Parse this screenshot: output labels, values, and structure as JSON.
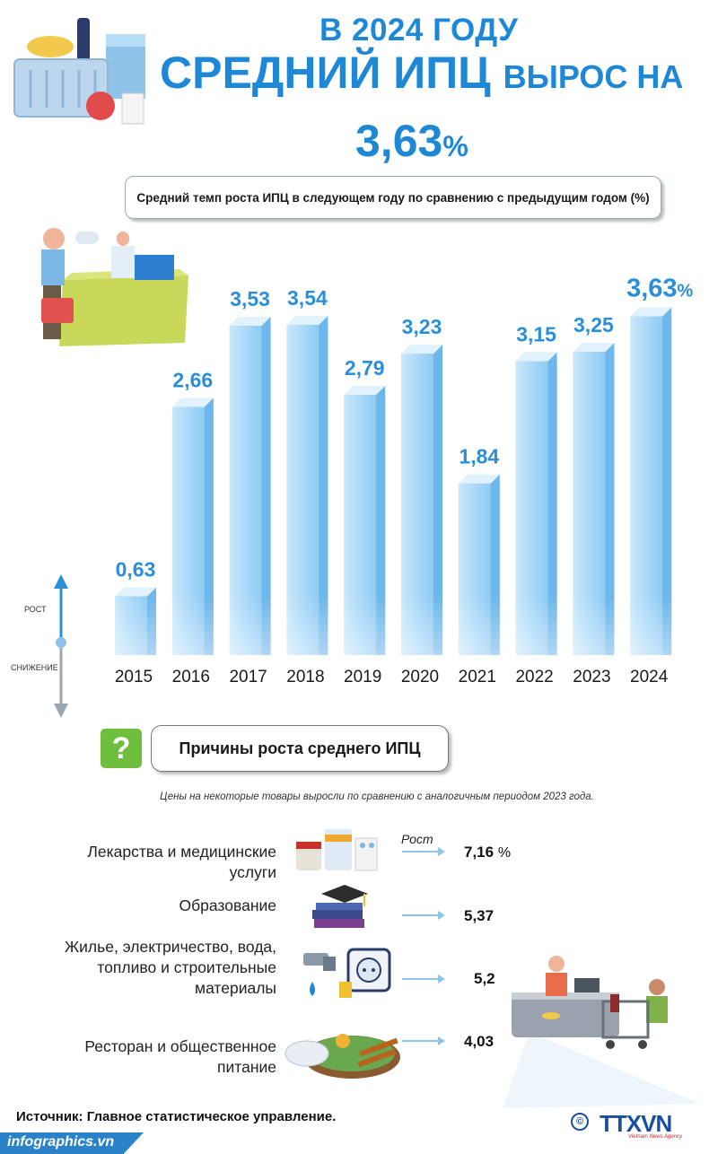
{
  "header": {
    "line1": "В 2024 ГОДУ",
    "line2_big": "СРЕДНИЙ ИПЦ",
    "line2_small": "ВЫРОС НА",
    "value": "3,63",
    "value_unit": "%"
  },
  "subtitle": "Средний темп роста ИПЦ в следующем году по сравнению с предыдущим годом (%)",
  "axis_words": {
    "up": "РОСТ",
    "down": "СНИЖЕНИЕ"
  },
  "chart_data": {
    "type": "bar",
    "categories": [
      "2015",
      "2016",
      "2017",
      "2018",
      "2019",
      "2020",
      "2021",
      "2022",
      "2023",
      "2024"
    ],
    "values": [
      0.63,
      2.66,
      3.53,
      3.54,
      2.79,
      3.23,
      1.84,
      3.15,
      3.25,
      3.63
    ],
    "labels": [
      "0,63",
      "2,66",
      "3,53",
      "3,54",
      "2,79",
      "3,23",
      "1,84",
      "3,15",
      "3,25",
      "3,63"
    ],
    "last_label_unit": "%",
    "title": "Средний темп роста ИПЦ в следующем году по сравнению с предыдущим годом (%)",
    "colors": {
      "bar": "#9fd3f7",
      "label": "#2a8fd8"
    }
  },
  "reasons": {
    "icon": "question-icon",
    "title": "Причины роста среднего ИПЦ",
    "note": "Цены на некоторые товары выросли по сравнению с аналогичным периодом 2023 года.",
    "rost_label": "Рост",
    "items": [
      {
        "label_lines": [
          "Лекарства и медицинские",
          "услуги"
        ],
        "value": "7,16",
        "unit": "%",
        "icon": "medicine-icon"
      },
      {
        "label_lines": [
          "Образование"
        ],
        "value": "5,37",
        "unit": "",
        "icon": "education-icon"
      },
      {
        "label_lines": [
          "Жилье, электричество, вода,",
          "топливо и строительные",
          "материалы"
        ],
        "value": "5,2",
        "unit": "",
        "icon": "utilities-icon"
      },
      {
        "label_lines": [
          "Ресторан и общественное",
          "питание"
        ],
        "value": "4,03",
        "unit": "",
        "icon": "food-icon"
      }
    ]
  },
  "source": "Источник: Главное статистическое управление.",
  "footer": {
    "site": "infographics.vn",
    "brand": "TTXVN",
    "brand_sub": "Vietnam News Agency",
    "copyright": "©"
  }
}
